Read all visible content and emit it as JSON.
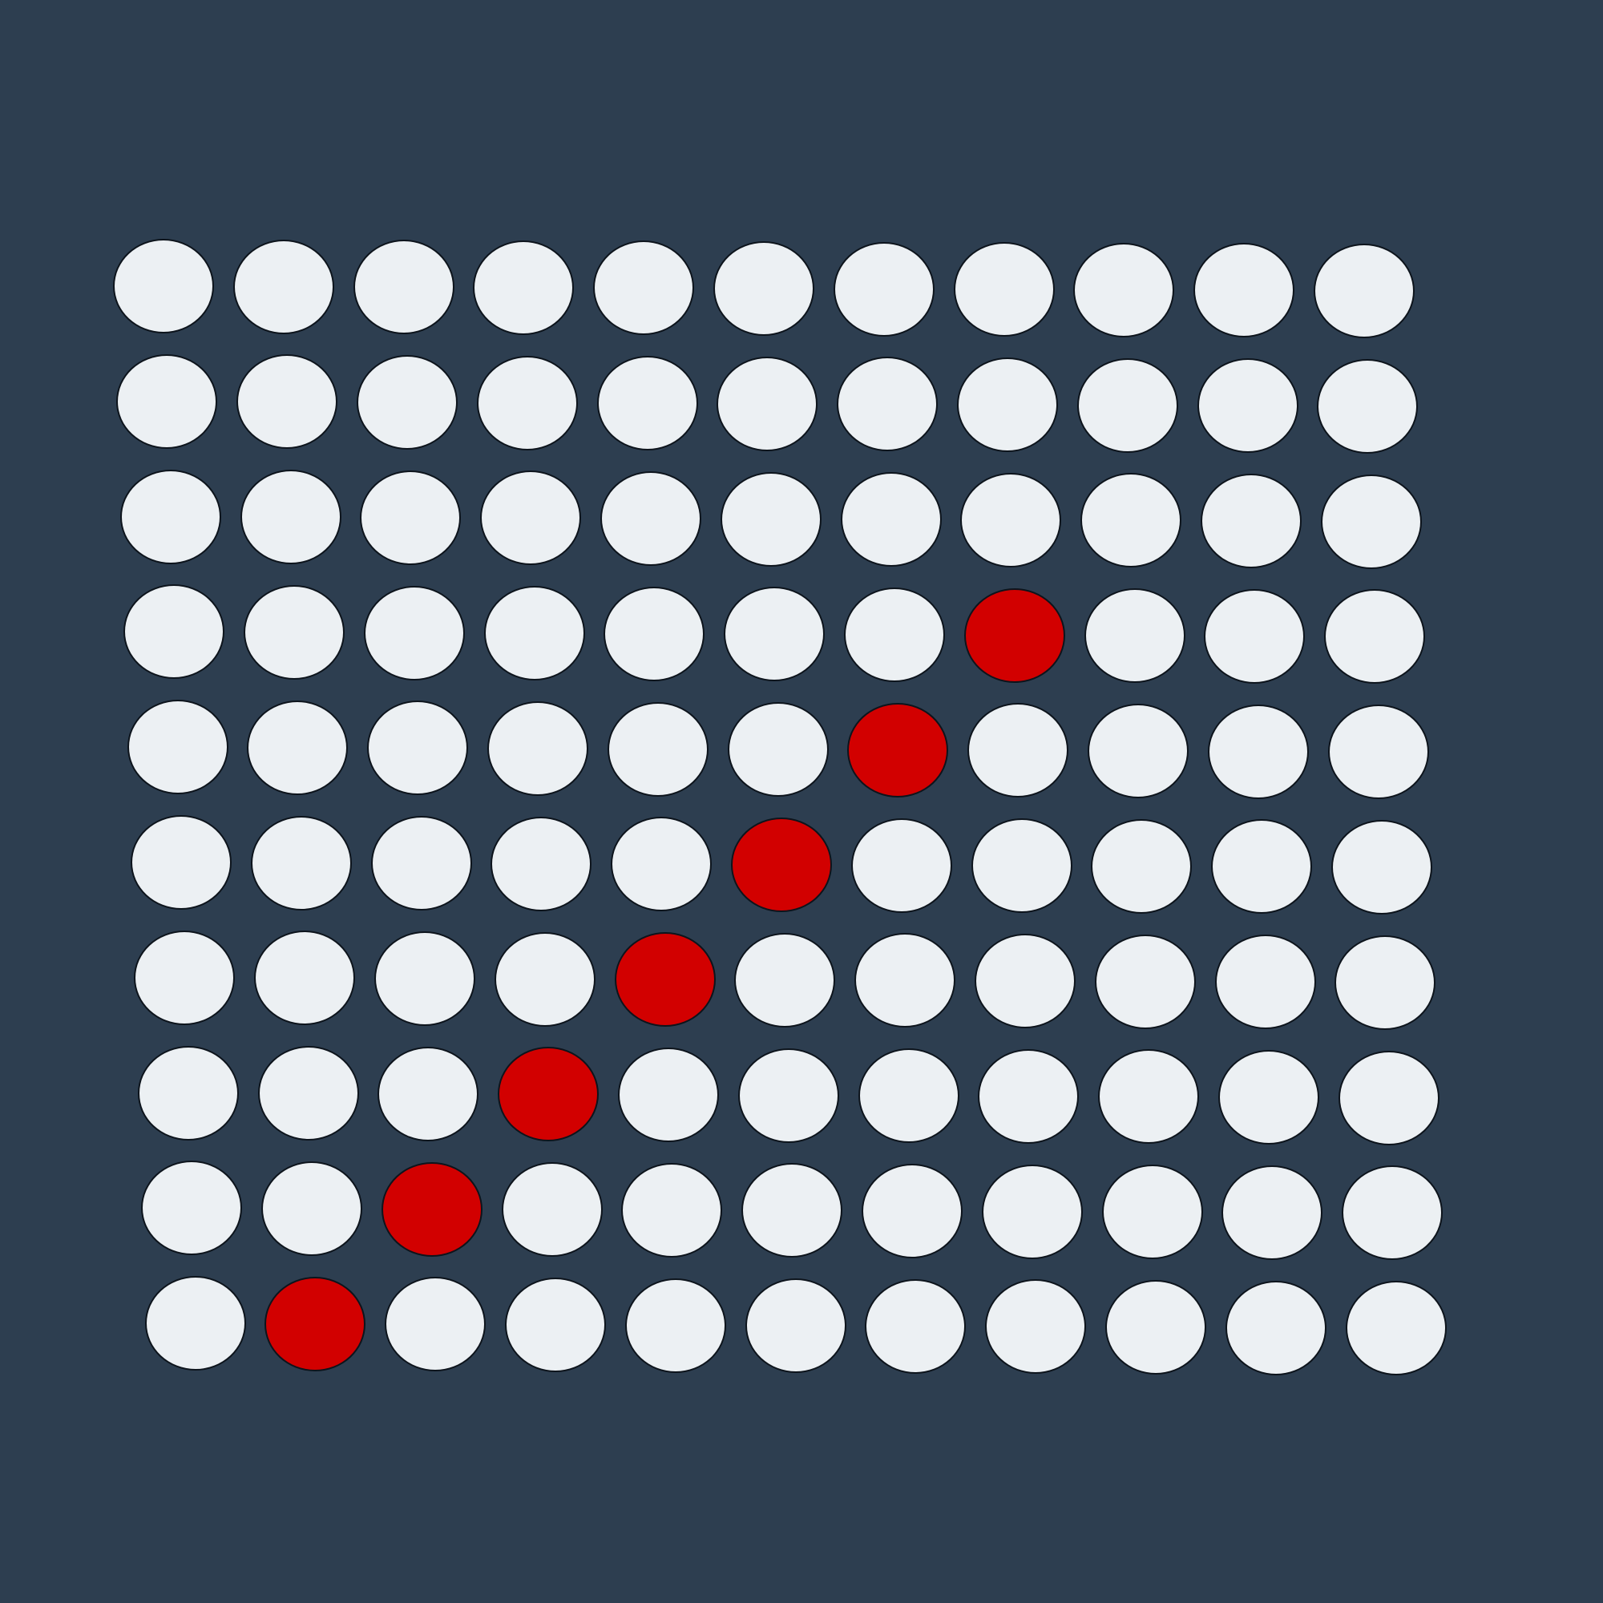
{
  "colors": {
    "background": "#2d3e50",
    "empty": "#ecf0f3",
    "marked": "#d20000"
  },
  "grid": {
    "rows": 10,
    "cols": 11,
    "marked_cells": [
      {
        "row": 4,
        "col": 8
      },
      {
        "row": 5,
        "col": 7
      },
      {
        "row": 6,
        "col": 6
      },
      {
        "row": 7,
        "col": 5
      },
      {
        "row": 8,
        "col": 4
      },
      {
        "row": 9,
        "col": 3
      },
      {
        "row": 10,
        "col": 2
      }
    ]
  }
}
